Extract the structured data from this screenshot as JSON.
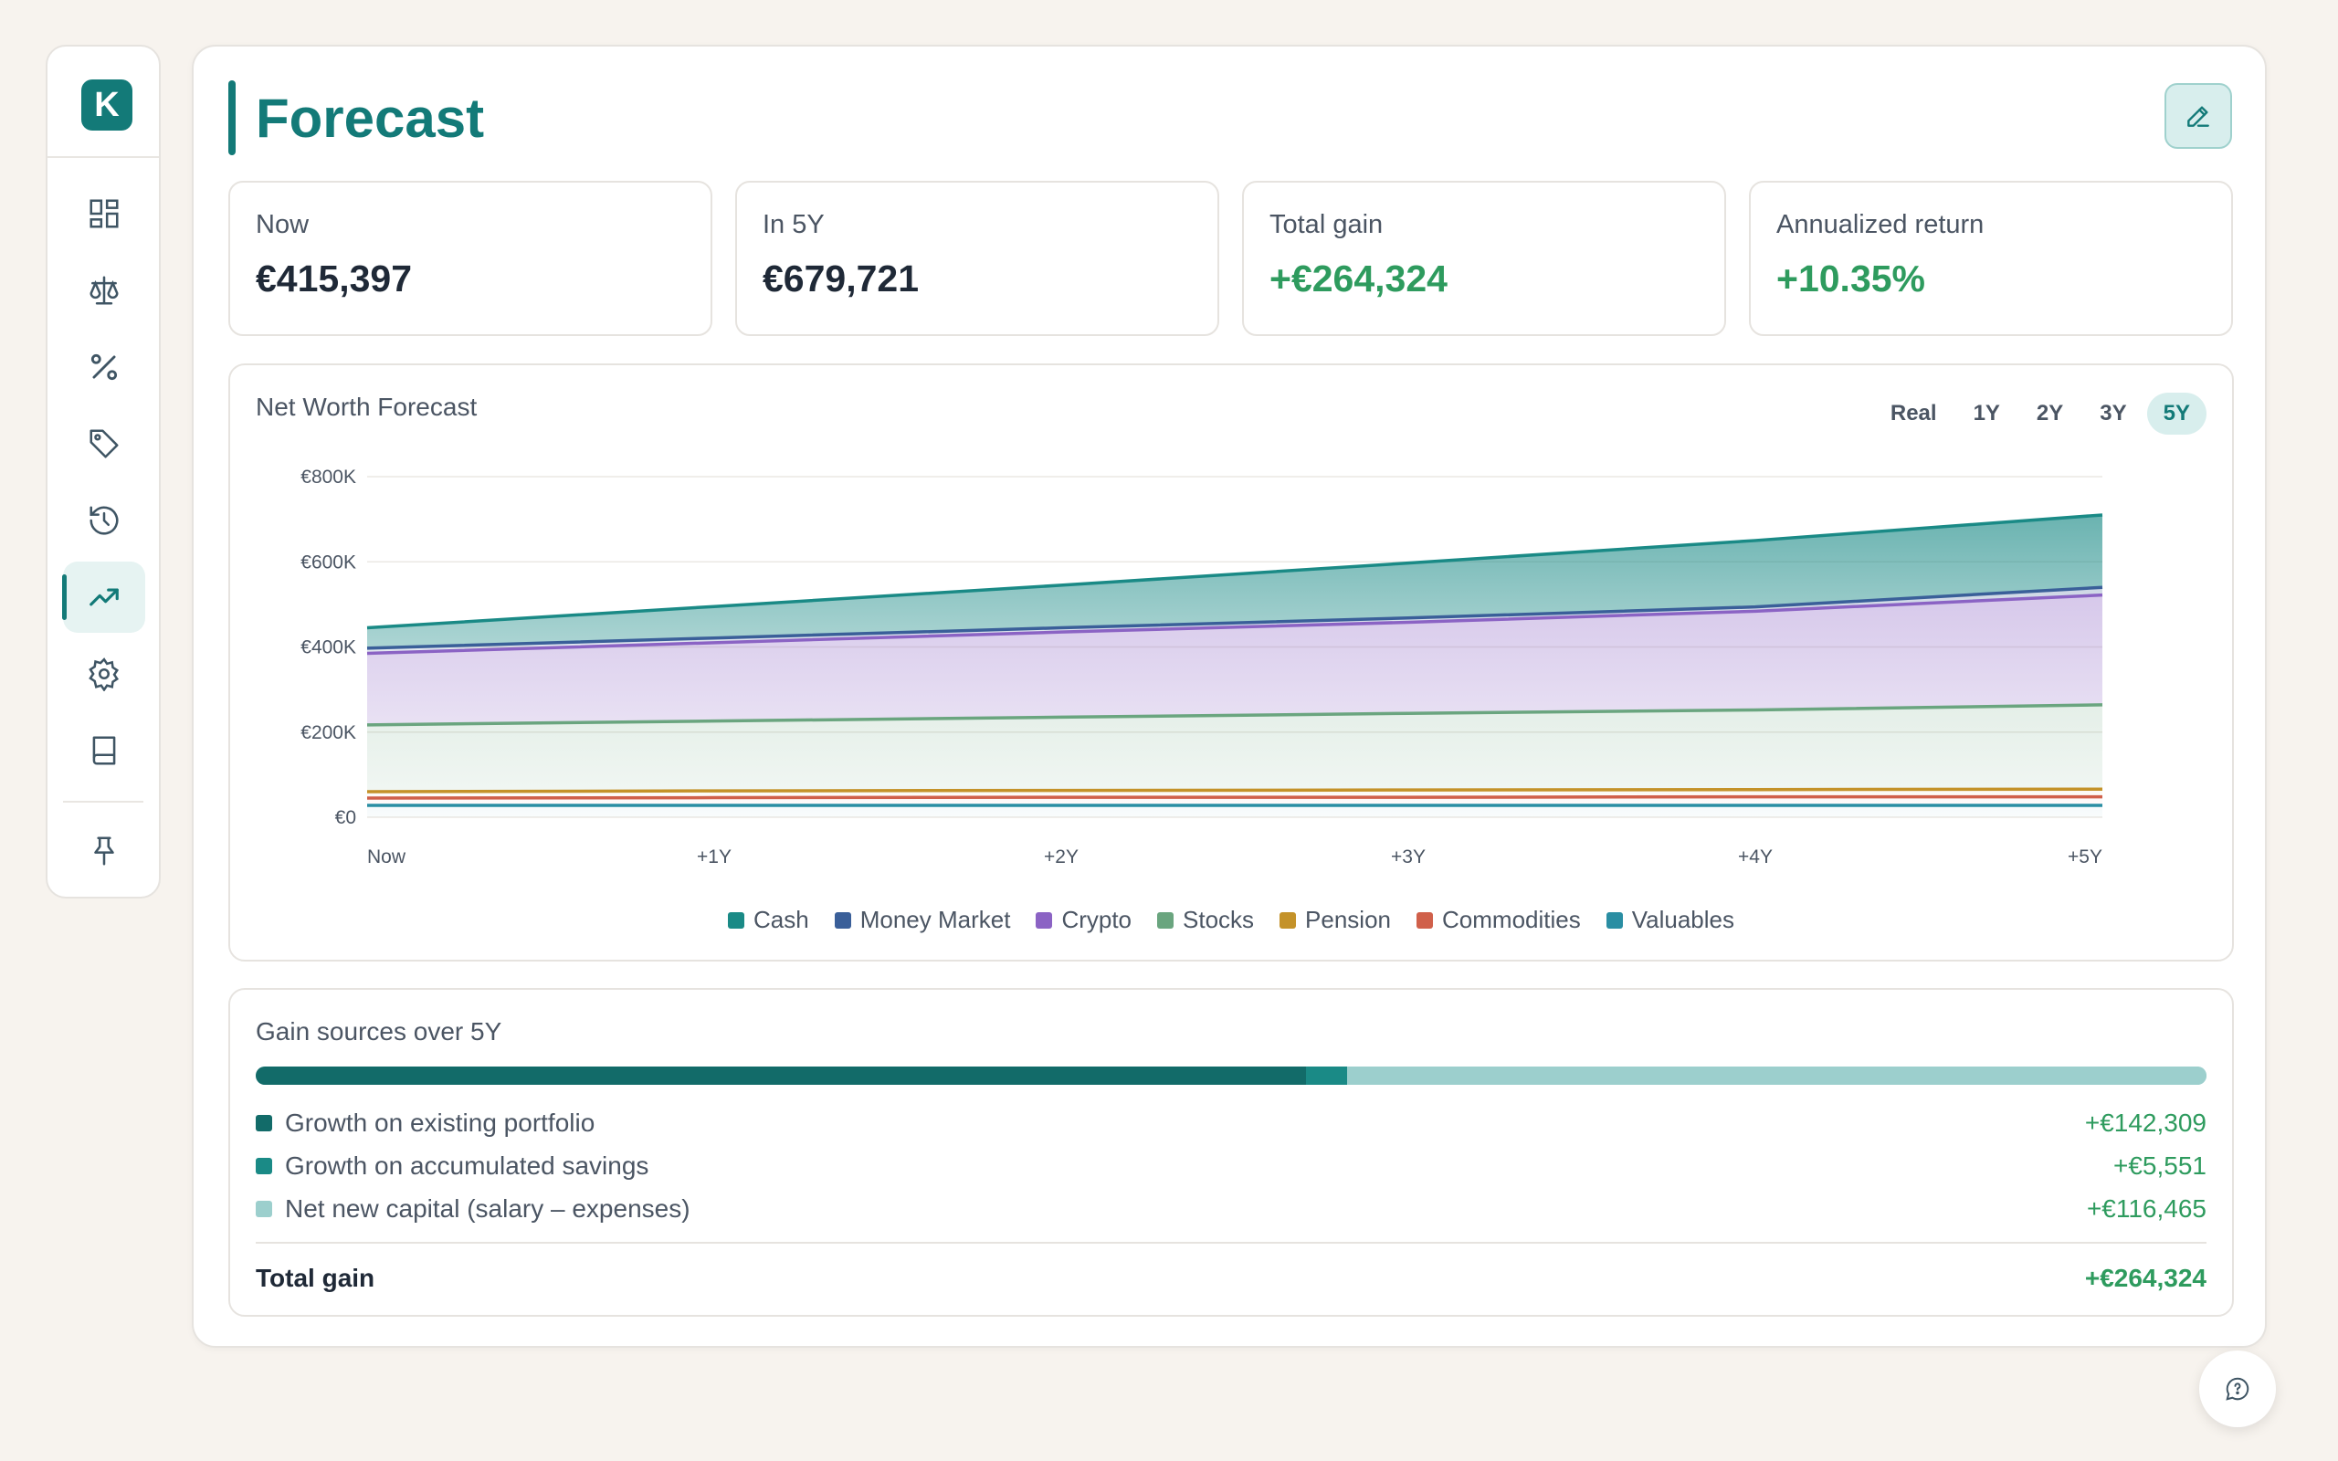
{
  "app": {
    "logo_letter": "K"
  },
  "sidebar": {
    "items": [
      {
        "icon": "dashboard-icon",
        "active": false
      },
      {
        "icon": "scale-icon",
        "active": false
      },
      {
        "icon": "percent-icon",
        "active": false
      },
      {
        "icon": "tag-icon",
        "active": false
      },
      {
        "icon": "history-icon",
        "active": false
      },
      {
        "icon": "trending-up-icon",
        "active": true
      },
      {
        "icon": "gear-icon",
        "active": false
      },
      {
        "icon": "book-icon",
        "active": false
      }
    ],
    "pin_icon": "pin-icon"
  },
  "header": {
    "title": "Forecast",
    "edit_icon": "pencil-icon"
  },
  "kpis": [
    {
      "label": "Now",
      "value": "€415,397",
      "positive": false
    },
    {
      "label": "In 5Y",
      "value": "€679,721",
      "positive": false
    },
    {
      "label": "Total gain",
      "value": "+€264,324",
      "positive": true
    },
    {
      "label": "Annualized return",
      "value": "+10.35%",
      "positive": true
    }
  ],
  "forecast_card": {
    "title": "Net Worth Forecast",
    "ranges": [
      "Real",
      "1Y",
      "2Y",
      "3Y",
      "5Y"
    ],
    "active_range": "5Y"
  },
  "chart_data": {
    "type": "area",
    "title": "Net Worth Forecast",
    "x": [
      "Now",
      "+1Y",
      "+2Y",
      "+3Y",
      "+4Y",
      "+5Y"
    ],
    "ylim": [
      0,
      800000
    ],
    "yticks": [
      0,
      200000,
      400000,
      600000,
      800000
    ],
    "ytick_labels": [
      "€0",
      "€200K",
      "€400K",
      "€600K",
      "€800K"
    ],
    "stacked": true,
    "grid": true,
    "legend_position": "bottom",
    "series": [
      {
        "name": "Cash",
        "color": "#1a8a86",
        "stack_top": [
          445000,
          495000,
          545000,
          597000,
          650000,
          710000
        ]
      },
      {
        "name": "Money Market",
        "color": "#3a5f99",
        "stack_top": [
          397000,
          421000,
          445000,
          468000,
          494000,
          540000
        ]
      },
      {
        "name": "Crypto",
        "color": "#8b63c4",
        "stack_top": [
          385000,
          410000,
          435000,
          458000,
          484000,
          522000
        ]
      },
      {
        "name": "Stocks",
        "color": "#6aa57f",
        "stack_top": [
          217000,
          226000,
          235000,
          244000,
          252000,
          264000
        ]
      },
      {
        "name": "Pension",
        "color": "#c49229",
        "stack_top": [
          60000,
          62000,
          63000,
          64000,
          65000,
          66000
        ]
      },
      {
        "name": "Commodities",
        "color": "#d0604a",
        "stack_top": [
          45000,
          46000,
          47000,
          47000,
          48000,
          48000
        ]
      },
      {
        "name": "Valuables",
        "color": "#2a8ea3",
        "stack_top": [
          28000,
          28000,
          28000,
          28000,
          28000,
          28000
        ]
      }
    ]
  },
  "gain_sources": {
    "title": "Gain sources over 5Y",
    "items": [
      {
        "label": "Growth on existing portfolio",
        "amount": "+€142,309",
        "value": 142309,
        "color": "#126b69"
      },
      {
        "label": "Growth on accumulated savings",
        "amount": "+€5,551",
        "value": 5551,
        "color": "#1a8a86"
      },
      {
        "label": "Net new capital (salary – expenses)",
        "amount": "+€116,465",
        "value": 116465,
        "color": "#9ccfcd"
      }
    ],
    "total_label": "Total gain",
    "total_amount": "+€264,324"
  },
  "help": {
    "icon": "chat-help-icon"
  }
}
